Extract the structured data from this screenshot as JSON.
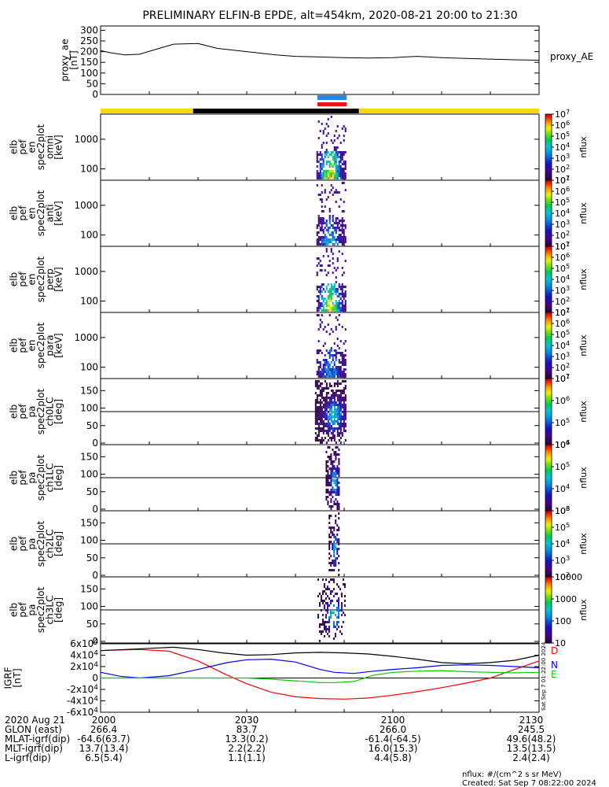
{
  "title": "PRELIMINARY ELFIN-B EPDE, alt=454km, 2020-08-21 20:00 to 21:30",
  "colors": {
    "bar_yellow": "#ffd700",
    "bar_black": "#000000",
    "bar_blue": "#2288ee",
    "bar_red": "#ee1111",
    "grf_d": "#ff0000",
    "grf_n": "#0000ff",
    "grf_e": "#00cc00",
    "grf_mag": "#000000"
  },
  "chart_data": [
    {
      "type": "line",
      "id": "proxy_ae",
      "ylabel": "proxy_ae\n[nT]",
      "y_ticks": [
        "0",
        "50",
        "100",
        "150",
        "200",
        "250",
        "300"
      ],
      "ylim": [
        0,
        320
      ],
      "x_minutes": [
        0,
        10,
        20,
        30,
        40,
        50,
        60,
        70,
        80,
        90
      ],
      "series": [
        {
          "name": "proxy_AE",
          "x": [
            0,
            2,
            5,
            8,
            12,
            15,
            20,
            24,
            28,
            32,
            36,
            40,
            45,
            50,
            55,
            60,
            65,
            70,
            75,
            80,
            85,
            90
          ],
          "y": [
            205,
            195,
            185,
            188,
            215,
            235,
            238,
            215,
            205,
            195,
            185,
            178,
            175,
            172,
            170,
            172,
            178,
            172,
            168,
            165,
            162,
            160
          ]
        }
      ]
    },
    {
      "type": "heatmap",
      "id": "spectrograms",
      "panels": [
        {
          "ylabel": "elb\npef\nen\nspec2plot\nomni\n[keV]",
          "y_ticks": [
            "100",
            "1000"
          ],
          "kind": "energy"
        },
        {
          "ylabel": "elb\npef\nen\nspec2plot\nanti\n[keV]",
          "y_ticks": [
            "100",
            "1000"
          ],
          "kind": "energy"
        },
        {
          "ylabel": "elb\npef\nen\nspec2plot\nperp\n[keV]",
          "y_ticks": [
            "100",
            "1000"
          ],
          "kind": "energy"
        },
        {
          "ylabel": "elb\npef\nen\nspec2plot\npara\n[keV]",
          "y_ticks": [
            "100",
            "1000"
          ],
          "kind": "energy"
        },
        {
          "ylabel": "elb\npef\npa\nspec2plot\nch0LC\n[deg]",
          "y_ticks": [
            "0",
            "50",
            "100",
            "150"
          ],
          "kind": "pitch"
        },
        {
          "ylabel": "elb\npef\npa\nspec2plot\nch1LC\n[deg]",
          "y_ticks": [
            "0",
            "50",
            "100",
            "150"
          ],
          "kind": "pitch"
        },
        {
          "ylabel": "elb\npef\npa\nspec2plot\nch2LC\n[deg]",
          "y_ticks": [
            "0",
            "50",
            "100",
            "150"
          ],
          "kind": "pitch"
        },
        {
          "ylabel": "elb\npef\npa\nspec2plot\nch3LC\n[deg]",
          "y_ticks": [
            "0",
            "50",
            "100",
            "150"
          ],
          "kind": "pitch"
        }
      ],
      "colorbars": [
        {
          "label": "nflux",
          "ticks": [
            "10^1",
            "10^2",
            "10^3",
            "10^4",
            "10^5",
            "10^6",
            "10^7"
          ]
        },
        {
          "label": "nflux",
          "ticks": [
            "10^1",
            "10^2",
            "10^3",
            "10^4",
            "10^5",
            "10^6",
            "10^7"
          ]
        },
        {
          "label": "nflux",
          "ticks": [
            "10^1",
            "10^2",
            "10^3",
            "10^4",
            "10^5",
            "10^6",
            "10^7"
          ]
        },
        {
          "label": "nflux",
          "ticks": [
            "10^1",
            "10^2",
            "10^3",
            "10^4",
            "10^5",
            "10^6",
            "10^7"
          ]
        },
        {
          "label": "nflux",
          "ticks": [
            "10^4",
            "10^5",
            "10^6",
            "10^7"
          ]
        },
        {
          "label": "nflux",
          "ticks": [
            "10^3",
            "10^4",
            "10^5",
            "10^6"
          ]
        },
        {
          "label": "nflux",
          "ticks": [
            "10^2",
            "10^3",
            "10^4",
            "10^5",
            "10^6"
          ]
        },
        {
          "label": "nflux",
          "ticks": [
            "10",
            "100",
            "1000",
            "10000"
          ]
        }
      ]
    },
    {
      "type": "line",
      "id": "igrf",
      "ylabel": "IGRF\n[nT]",
      "y_ticks": [
        "-6x10^4",
        "-4x10^4",
        "-2x10^4",
        "0",
        "2x10^4",
        "4x10^4",
        "6x10^4"
      ],
      "ylim": [
        -60000,
        60000
      ],
      "series": [
        {
          "name": "D",
          "x": [
            0,
            3,
            8,
            14,
            20,
            26,
            30,
            35,
            40,
            45,
            50,
            55,
            60,
            65,
            70,
            75,
            80,
            85,
            90
          ],
          "y": [
            48000,
            49000,
            50000,
            47000,
            30000,
            5000,
            -10000,
            -25000,
            -33000,
            -36000,
            -37000,
            -35000,
            -30000,
            -24000,
            -17000,
            -9000,
            0,
            15000,
            30000
          ]
        },
        {
          "name": "N",
          "x": [
            0,
            4,
            8,
            14,
            20,
            26,
            30,
            35,
            40,
            45,
            48,
            52,
            56,
            60,
            65,
            70,
            75,
            80,
            85,
            90
          ],
          "y": [
            10000,
            3000,
            0,
            4000,
            15000,
            27000,
            32000,
            33000,
            28000,
            15000,
            10000,
            8000,
            12000,
            15000,
            18000,
            22000,
            23000,
            22000,
            20000,
            18000
          ]
        },
        {
          "name": "E",
          "x": [
            0,
            10,
            20,
            30,
            35,
            40,
            45,
            48,
            52,
            56,
            60,
            65,
            70,
            75,
            80,
            85,
            90
          ],
          "y": [
            0,
            0,
            0,
            0,
            -2000,
            -5000,
            -8000,
            -8000,
            -6000,
            5000,
            10000,
            12000,
            13000,
            11000,
            10000,
            9000,
            10000
          ]
        },
        {
          "name": "|B|",
          "x": [
            0,
            5,
            10,
            15,
            20,
            25,
            30,
            35,
            40,
            45,
            50,
            55,
            60,
            65,
            70,
            75,
            80,
            85,
            90
          ],
          "y": [
            48000,
            50000,
            52000,
            54000,
            50000,
            44000,
            40000,
            41000,
            44000,
            45000,
            44000,
            42000,
            38000,
            33000,
            27000,
            25000,
            27000,
            31000,
            40000
          ]
        }
      ]
    }
  ],
  "overlay_note": "Sat Sep  7 01:22:00 2024",
  "legend_proxy": "proxy_AE",
  "legend_grf": [
    "D",
    "N",
    "E"
  ],
  "x_axis": {
    "row_labels": [
      "2020 Aug 21",
      "GLON (east)",
      "MLAT-igrf(dip)",
      "MLT-igrf(dip)",
      "L-igrf(dip)"
    ],
    "columns": [
      {
        "time": "2000",
        "glon": "266.4",
        "mlat": "-64.6(63.7)",
        "mlt": "13.7(13.4)",
        "l": "6.5(5.4)"
      },
      {
        "time": "2030",
        "glon": "83.7",
        "mlat": "13.3(0.2)",
        "mlt": "2.2(2.2)",
        "l": "1.1(1.1)"
      },
      {
        "time": "2100",
        "glon": "266.0",
        "mlat": "-61.4(-64.5)",
        "mlt": "16.0(15.3)",
        "l": "4.4(5.8)"
      },
      {
        "time": "2130",
        "glon": "245.5",
        "mlat": "49.6(48.2)",
        "mlt": "13.5(13.5)",
        "l": "2.4(2.4)"
      }
    ]
  },
  "footer": {
    "units": "nflux: #/(cm^2 s sr MeV)",
    "created": "Created: Sat Sep  7 08:22:00 2024"
  }
}
